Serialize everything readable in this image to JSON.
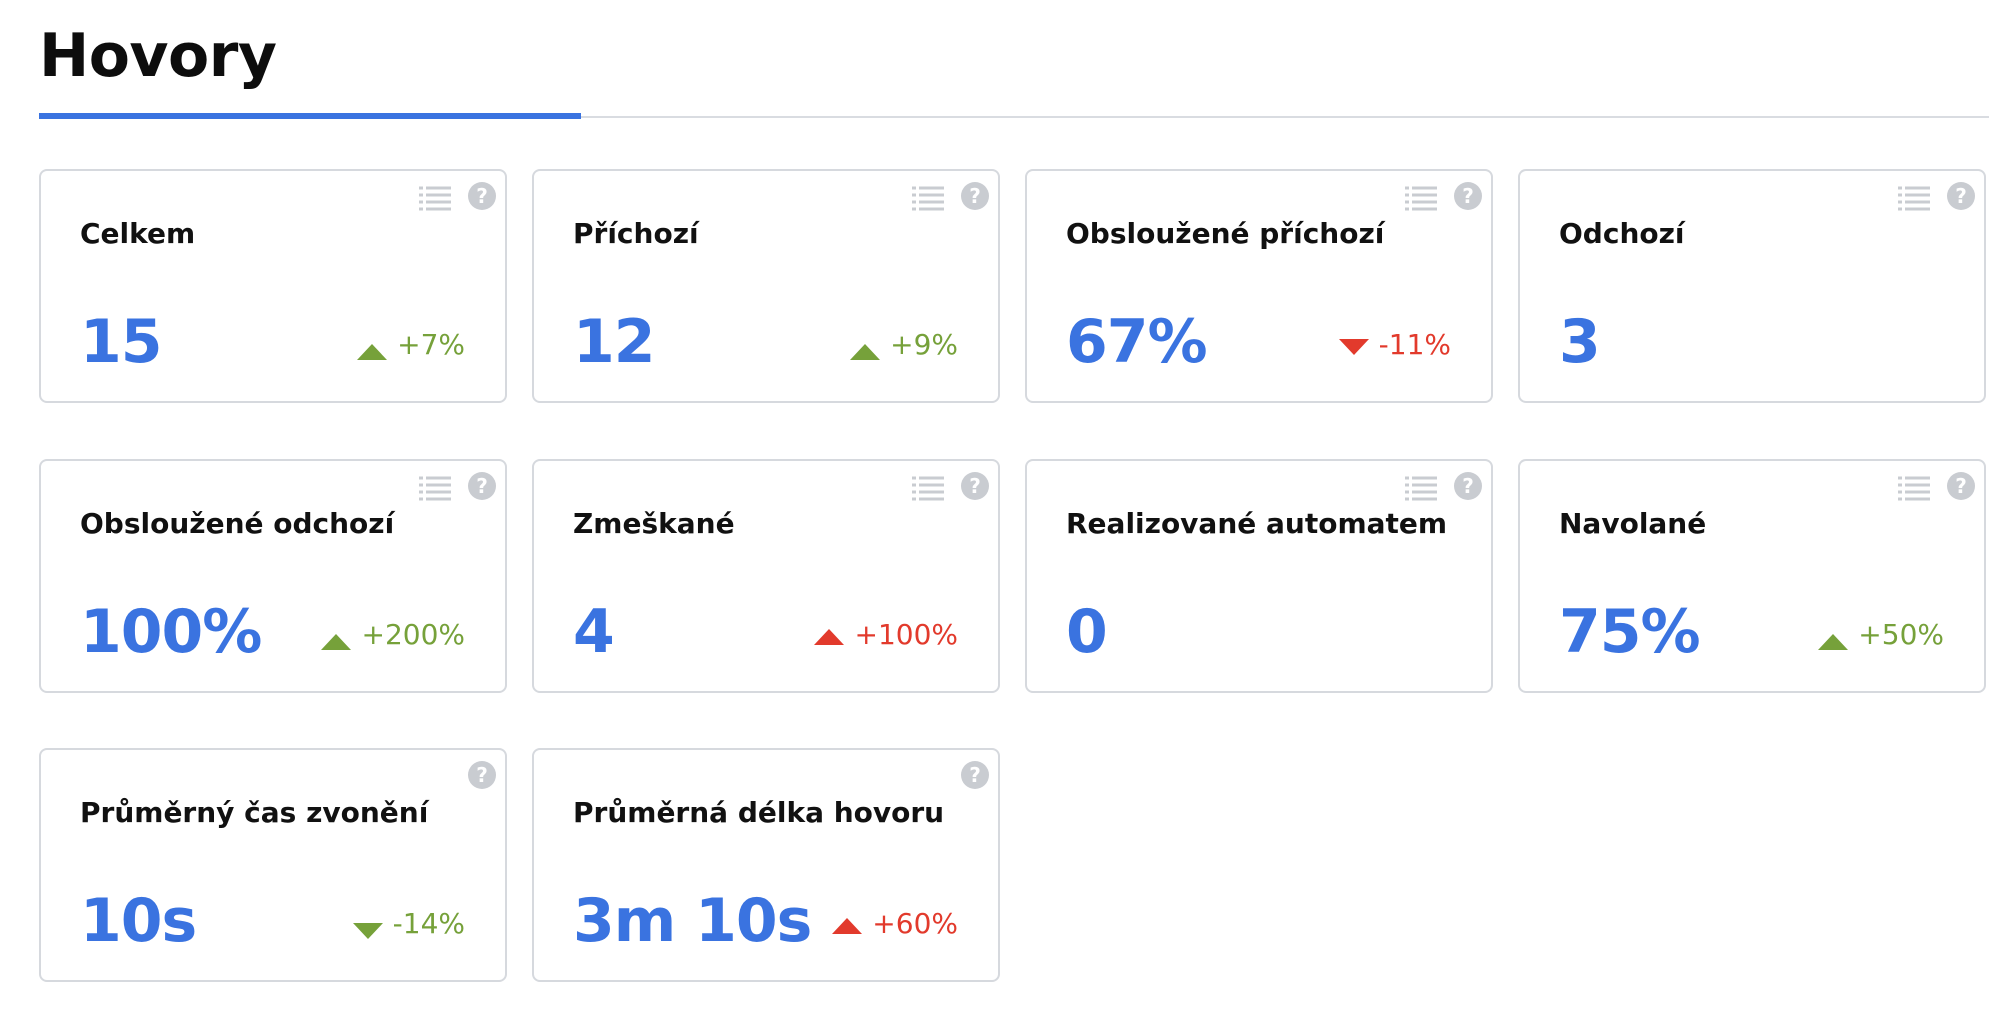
{
  "page": {
    "title": "Hovory"
  },
  "colors": {
    "accent": "#3a73e0",
    "positive": "#76a13a",
    "negative": "#e23a2c",
    "border": "#d6d9de",
    "icon": "#c9ccd1"
  },
  "cards": [
    {
      "title": "Celkem",
      "value": "15",
      "change": "+7%",
      "direction": "up",
      "tone": "good",
      "has_list": true
    },
    {
      "title": "Příchozí",
      "value": "12",
      "change": "+9%",
      "direction": "up",
      "tone": "good",
      "has_list": true
    },
    {
      "title": "Obsloužené příchozí",
      "value": "67%",
      "change": "-11%",
      "direction": "down",
      "tone": "bad",
      "has_list": true
    },
    {
      "title": "Odchozí",
      "value": "3",
      "change": "",
      "direction": "",
      "tone": "",
      "has_list": true
    },
    {
      "title": "Obsloužené odchozí",
      "value": "100%",
      "change": "+200%",
      "direction": "up",
      "tone": "good",
      "has_list": true
    },
    {
      "title": "Zmeškané",
      "value": "4",
      "change": "+100%",
      "direction": "up",
      "tone": "bad",
      "has_list": true
    },
    {
      "title": "Realizované automatem",
      "value": "0",
      "change": "",
      "direction": "",
      "tone": "",
      "has_list": true
    },
    {
      "title": "Navolané",
      "value": "75%",
      "change": "+50%",
      "direction": "up",
      "tone": "good",
      "has_list": true
    },
    {
      "title": "Průměrný čas zvonění",
      "value": "10s",
      "change": "-14%",
      "direction": "down",
      "tone": "good",
      "has_list": false
    },
    {
      "title": "Průměrná délka hovoru",
      "value": "3m 10s",
      "change": "+60%",
      "direction": "up",
      "tone": "bad",
      "has_list": false
    }
  ],
  "icons": {
    "list": "list-icon",
    "help": "help-icon",
    "help_glyph": "?"
  }
}
